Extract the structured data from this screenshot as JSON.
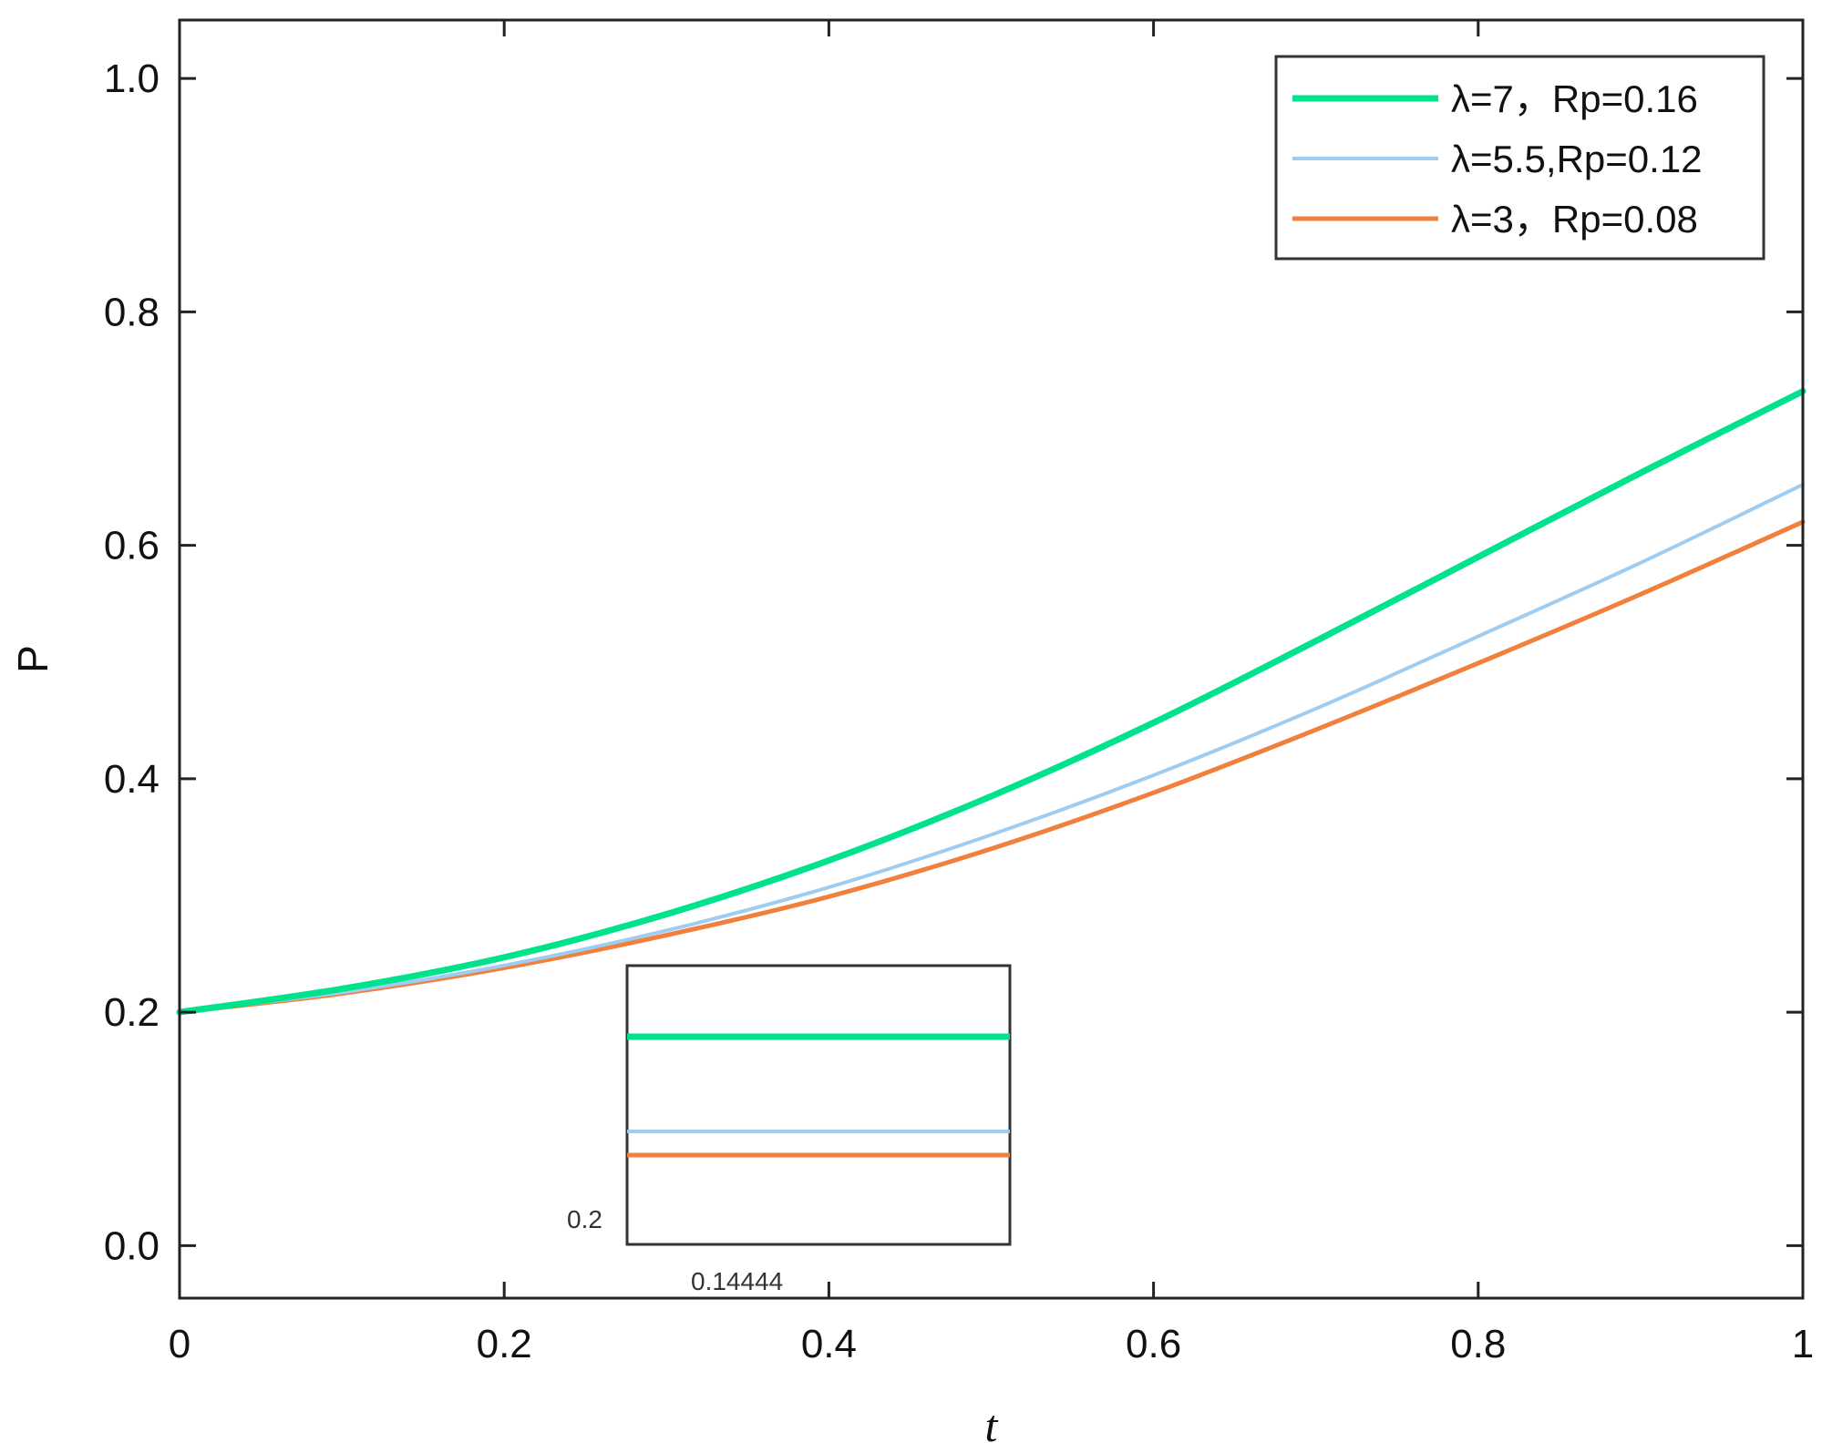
{
  "chart_data": {
    "type": "line",
    "title": "",
    "xlabel": "t",
    "ylabel": "P",
    "xlim": [
      0,
      1
    ],
    "ylim": [
      -0.045,
      1.05
    ],
    "xticks": [
      "0",
      "0.2",
      "0.4",
      "0.6",
      "0.8",
      "1"
    ],
    "xtick_values": [
      0,
      0.2,
      0.4,
      0.6,
      0.8,
      1.0
    ],
    "yticks": [
      "0.0",
      "0.2",
      "0.4",
      "0.6",
      "0.8",
      "1.0"
    ],
    "ytick_values": [
      0.0,
      0.2,
      0.4,
      0.6,
      0.8,
      1.0
    ],
    "grid": false,
    "legend_position": "top-right",
    "x": [
      0,
      0.1,
      0.2,
      0.3,
      0.4,
      0.5,
      0.6,
      0.7,
      0.8,
      0.9,
      1.0
    ],
    "series": [
      {
        "name": "λ=7，Rp=0.16",
        "color": "#00e28c",
        "values": [
          0.2,
          0.22,
          0.247,
          0.284,
          0.33,
          0.385,
          0.448,
          0.518,
          0.59,
          0.662,
          0.732
        ]
      },
      {
        "name": "λ=5.5,Rp=0.12",
        "color": "#9fcdf2",
        "values": [
          0.2,
          0.217,
          0.24,
          0.27,
          0.307,
          0.352,
          0.403,
          0.46,
          0.522,
          0.585,
          0.652
        ]
      },
      {
        "name": "λ=3，Rp=0.08",
        "color": "#f0803c",
        "values": [
          0.2,
          0.216,
          0.238,
          0.266,
          0.299,
          0.34,
          0.388,
          0.442,
          0.499,
          0.558,
          0.62
        ]
      }
    ],
    "inset": {
      "xtick_label": "0.14444",
      "ytick_label": "0.2"
    }
  }
}
